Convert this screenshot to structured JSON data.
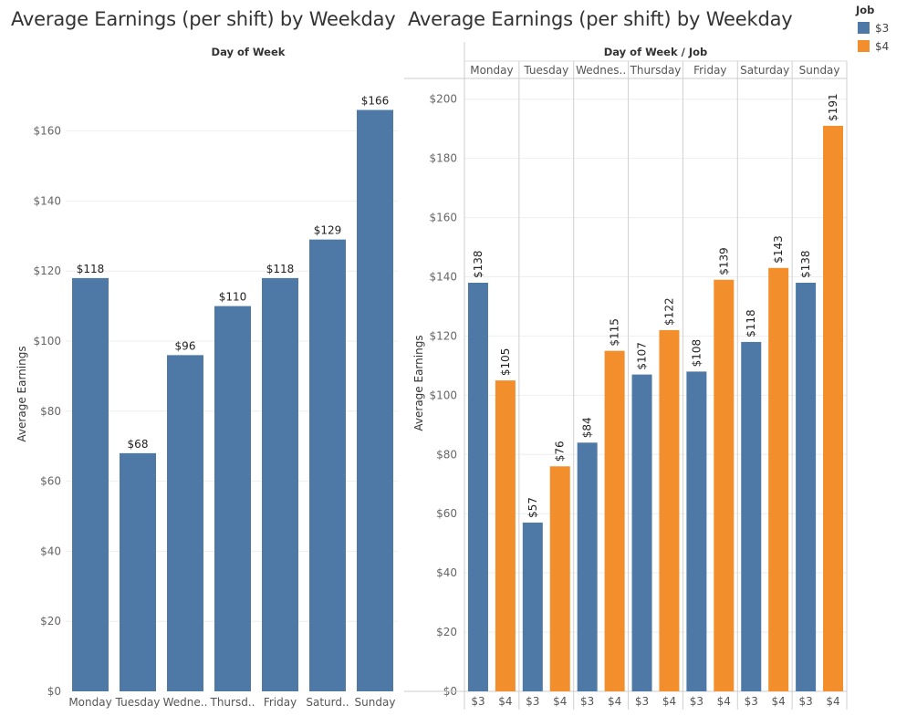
{
  "legend": {
    "title": "Job",
    "items": [
      {
        "label": "$3",
        "color": "#4e79a7"
      },
      {
        "label": "$4",
        "color": "#f28e2b"
      }
    ]
  },
  "chart_data": [
    {
      "type": "bar",
      "title": "Average Earnings (per shift) by Weekday",
      "header": "Day of Week",
      "ylabel": "Average Earnings",
      "ylim": [
        0,
        175
      ],
      "yticks": [
        {
          "value": 0,
          "label": "$0"
        },
        {
          "value": 20,
          "label": "$20"
        },
        {
          "value": 40,
          "label": "$40"
        },
        {
          "value": 60,
          "label": "$60"
        },
        {
          "value": 80,
          "label": "$80"
        },
        {
          "value": 100,
          "label": "$100"
        },
        {
          "value": 120,
          "label": "$120"
        },
        {
          "value": 140,
          "label": "$140"
        },
        {
          "value": 160,
          "label": "$160"
        }
      ],
      "categories": [
        "Monday",
        "Tuesday",
        "Wedne..",
        "Thursd..",
        "Friday",
        "Saturd..",
        "Sunday"
      ],
      "values": [
        118,
        68,
        96,
        110,
        118,
        129,
        166
      ],
      "value_labels": [
        "$118",
        "$68",
        "$96",
        "$110",
        "$118",
        "$129",
        "$166"
      ],
      "color": "#4e79a7",
      "grid": true
    },
    {
      "type": "bar",
      "title": "Average Earnings (per shift) by Weekday",
      "header": "Day of Week  /  Job",
      "ylabel": "Average Earnings",
      "ylim": [
        0,
        207
      ],
      "yticks": [
        {
          "value": 0,
          "label": "$0"
        },
        {
          "value": 20,
          "label": "$20"
        },
        {
          "value": 40,
          "label": "$40"
        },
        {
          "value": 60,
          "label": "$60"
        },
        {
          "value": 80,
          "label": "$80"
        },
        {
          "value": 100,
          "label": "$100"
        },
        {
          "value": 120,
          "label": "$120"
        },
        {
          "value": 140,
          "label": "$140"
        },
        {
          "value": 160,
          "label": "$160"
        },
        {
          "value": 180,
          "label": "$180"
        },
        {
          "value": 200,
          "label": "$200"
        }
      ],
      "categories": [
        "Monday",
        "Tuesday",
        "Wednes..",
        "Thursday",
        "Friday",
        "Saturday",
        "Sunday"
      ],
      "series": [
        {
          "name": "$3",
          "color": "#4e79a7",
          "values": [
            138,
            57,
            84,
            107,
            108,
            118,
            138
          ],
          "value_labels": [
            "$138",
            "$57",
            "$84",
            "$107",
            "$108",
            "$118",
            "$138"
          ]
        },
        {
          "name": "$4",
          "color": "#f28e2b",
          "values": [
            105,
            76,
            115,
            122,
            139,
            143,
            191
          ],
          "value_labels": [
            "$105",
            "$76",
            "$115",
            "$122",
            "$139",
            "$143",
            "$191"
          ]
        }
      ],
      "grid": true
    }
  ]
}
